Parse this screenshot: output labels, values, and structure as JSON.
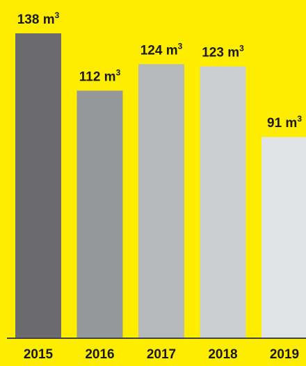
{
  "chart_data": {
    "type": "bar",
    "categories": [
      "2015",
      "2016",
      "2017",
      "2018",
      "2019"
    ],
    "values": [
      138,
      112,
      124,
      123,
      91
    ],
    "data_labels": [
      "138 m³",
      "112 m³",
      "124 m³",
      "123 m³",
      "91 m³"
    ],
    "title": "",
    "xlabel": "",
    "ylabel": "",
    "ylim": [
      0,
      138
    ],
    "grid": false,
    "legend": "none",
    "colors": {
      "background": "#FFED00",
      "bars": [
        "#6B6B6E",
        "#969799",
        "#B8B9BB",
        "#CDCED0",
        "#E2E3E4"
      ],
      "axis": "#444444",
      "text": "#1A1A1A"
    }
  }
}
